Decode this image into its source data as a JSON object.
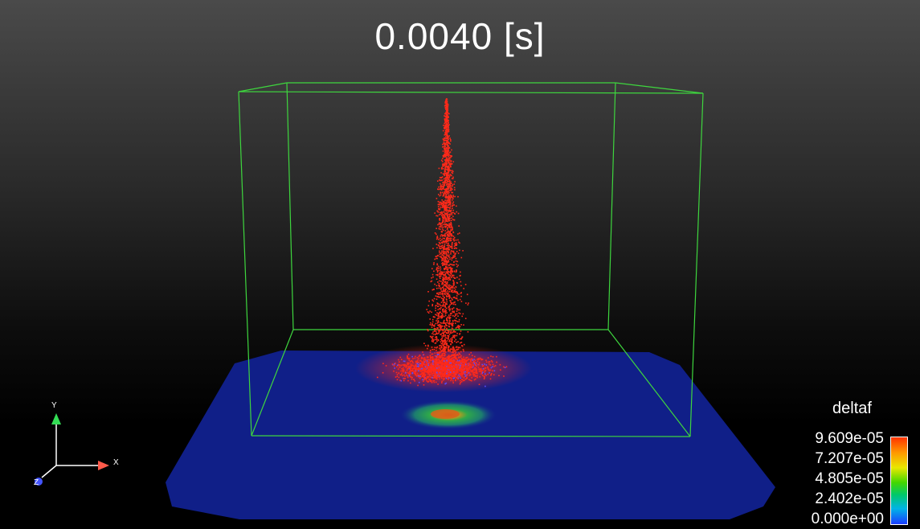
{
  "title": "0.0040 [s]",
  "legend": {
    "variable": "deltaf",
    "labels": [
      "9.609e-05",
      "7.207e-05",
      "4.805e-05",
      "2.402e-05",
      "0.000e+00"
    ]
  },
  "orientation_axes": {
    "x_label": "X",
    "y_label": "Y",
    "z_label": "Z"
  },
  "colors": {
    "bounding_box": "#3ed63e",
    "ground_plane": "#0f1f86",
    "particles": "#ff2a1a",
    "axis_x": "#ff5a4a",
    "axis_y": "#33dd55",
    "axis_z": "#4455ff"
  }
}
